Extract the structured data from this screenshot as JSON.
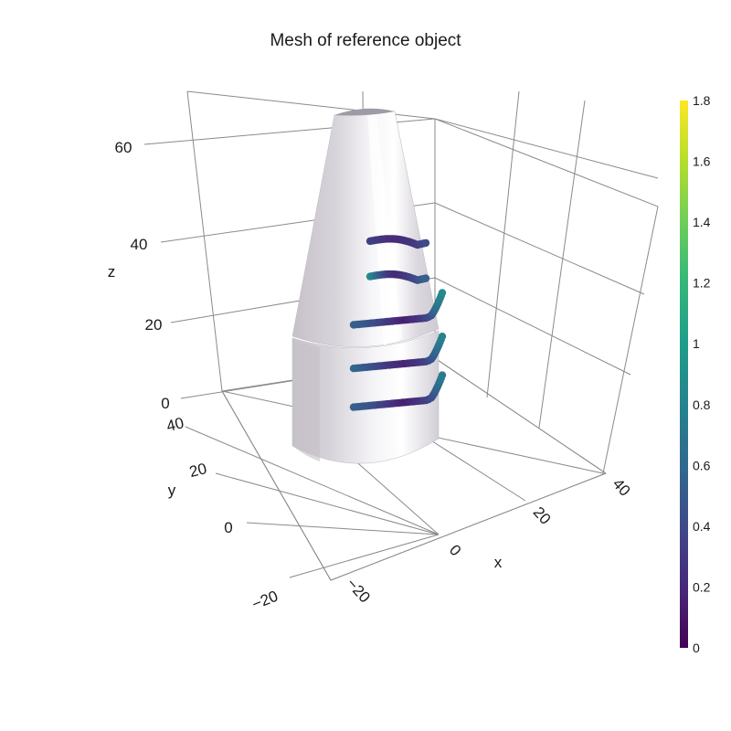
{
  "chart_data": {
    "type": "mesh3d+scatter3d",
    "title": "Mesh of reference object",
    "axes": {
      "x": {
        "label": "x",
        "ticks": [
          "−20",
          "0",
          "20",
          "40"
        ]
      },
      "y": {
        "label": "y",
        "ticks": [
          "0",
          "20",
          "40"
        ]
      },
      "z": {
        "label": "z",
        "ticks": [
          "0",
          "20",
          "40",
          "60"
        ]
      }
    },
    "mesh": {
      "name": "reference object",
      "shape": "cylinder base with conical top",
      "color": "#d9d6dc"
    },
    "colorbar": {
      "colorscale": "Viridis",
      "range": [
        0,
        1.8
      ],
      "ticks": [
        "0",
        "0.2",
        "0.4",
        "0.6",
        "0.8",
        "1",
        "1.2",
        "1.4",
        "1.6",
        "1.8"
      ]
    },
    "series": [
      {
        "z": 47,
        "values": [
          0.35,
          0.3,
          0.25,
          0.22,
          0.25,
          0.3,
          0.4
        ]
      },
      {
        "z": 38,
        "values": [
          0.9,
          0.55,
          0.3,
          0.2,
          0.3,
          0.4,
          0.55
        ]
      },
      {
        "z": 25,
        "values": [
          0.55,
          0.45,
          0.3,
          0.15,
          0.3,
          0.6,
          0.85
        ]
      },
      {
        "z": 16,
        "values": [
          0.6,
          0.45,
          0.3,
          0.18,
          0.3,
          0.55,
          0.8
        ]
      },
      {
        "z": 8,
        "values": [
          0.55,
          0.45,
          0.3,
          0.15,
          0.3,
          0.5,
          0.75
        ]
      }
    ]
  }
}
